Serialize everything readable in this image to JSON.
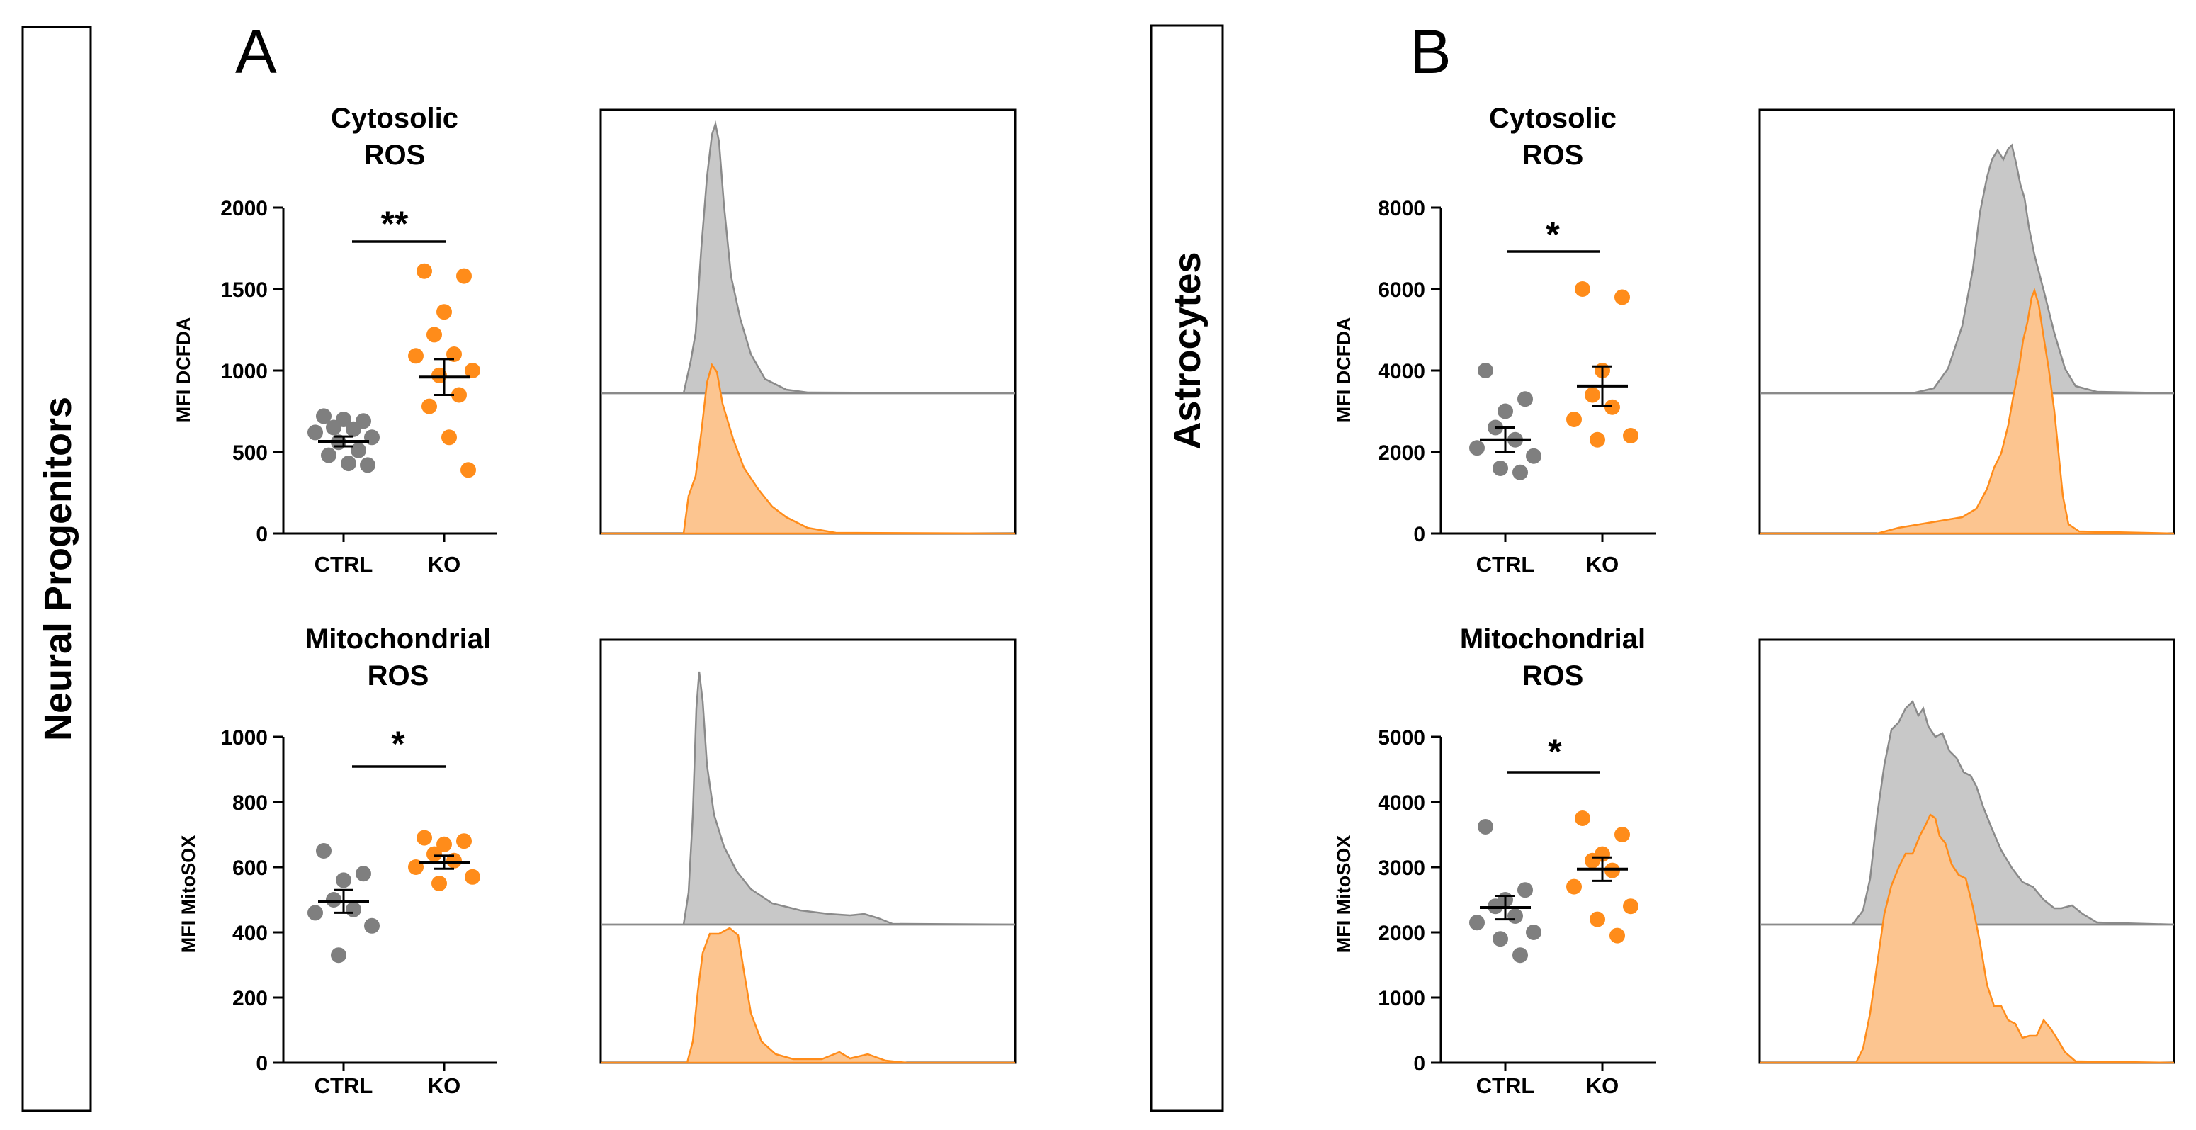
{
  "panels": {
    "left": {
      "letter": "A",
      "side_label": "Neural Progenitors"
    },
    "right": {
      "letter": "B",
      "side_label": "Astrocytes"
    }
  },
  "colors": {
    "ctrl": "#7f7f7f",
    "ko": "#ff8c1a",
    "ctrl_fill": "#c8c8c8",
    "ko_fill": "#fcc590"
  },
  "chart_data": [
    {
      "type": "scatter",
      "id": "npc-cyto",
      "title": [
        "Cytosolic",
        "ROS"
      ],
      "ylabel": "MFI DCFDA",
      "ylim": [
        0,
        2000
      ],
      "yticks": [
        0,
        500,
        1000,
        1500,
        2000
      ],
      "ytick_labels": [
        "0",
        "500",
        "1000",
        "1500",
        "2000"
      ],
      "categories": [
        "CTRL",
        "KO"
      ],
      "series": [
        {
          "name": "CTRL",
          "color": "#7f7f7f",
          "values": [
            720,
            690,
            700,
            650,
            640,
            620,
            590,
            560,
            510,
            480,
            430,
            420
          ],
          "mean": 565,
          "sem": 30
        },
        {
          "name": "KO",
          "color": "#ff8c1a",
          "values": [
            1610,
            1580,
            1360,
            1220,
            1100,
            1090,
            1000,
            970,
            850,
            780,
            590,
            390
          ],
          "mean": 960,
          "sem": 110
        }
      ],
      "significance": "**"
    },
    {
      "type": "scatter",
      "id": "npc-mito",
      "title": [
        "Mitochondrial",
        "ROS"
      ],
      "ylabel": "MFI MitoSOX",
      "ylim": [
        0,
        1000
      ],
      "yticks": [
        0,
        200,
        400,
        600,
        800,
        1000
      ],
      "ytick_labels": [
        "0",
        "200",
        "400",
        "600",
        "800",
        "1000"
      ],
      "categories": [
        "CTRL",
        "KO"
      ],
      "series": [
        {
          "name": "CTRL",
          "color": "#7f7f7f",
          "values": [
            650,
            580,
            560,
            500,
            470,
            460,
            420,
            330
          ],
          "mean": 495,
          "sem": 35
        },
        {
          "name": "KO",
          "color": "#ff8c1a",
          "values": [
            690,
            680,
            670,
            640,
            620,
            600,
            570,
            550
          ],
          "mean": 615,
          "sem": 20
        }
      ],
      "significance": "*"
    },
    {
      "type": "scatter",
      "id": "astro-cyto",
      "title": [
        "Cytosolic",
        "ROS"
      ],
      "ylabel": "MFI DCFDA",
      "ylim": [
        0,
        8000
      ],
      "yticks": [
        0,
        2000,
        4000,
        6000,
        8000
      ],
      "ytick_labels": [
        "0",
        "2000",
        "4000",
        "6000",
        "8000"
      ],
      "categories": [
        "CTRL",
        "KO"
      ],
      "series": [
        {
          "name": "CTRL",
          "color": "#7f7f7f",
          "values": [
            4000,
            3300,
            3000,
            2600,
            2300,
            2100,
            1900,
            1600,
            1500
          ],
          "mean": 2300,
          "sem": 300
        },
        {
          "name": "KO",
          "color": "#ff8c1a",
          "values": [
            6000,
            5800,
            4000,
            3400,
            3100,
            2800,
            2400,
            2300
          ],
          "mean": 3620,
          "sem": 480
        }
      ],
      "significance": "*"
    },
    {
      "type": "scatter",
      "id": "astro-mito",
      "title": [
        "Mitochondrial",
        "ROS"
      ],
      "ylabel": "MFI MitoSOX",
      "ylim": [
        0,
        5000
      ],
      "yticks": [
        0,
        1000,
        2000,
        3000,
        4000,
        5000
      ],
      "ytick_labels": [
        "0",
        "1000",
        "2000",
        "3000",
        "4000",
        "5000"
      ],
      "categories": [
        "CTRL",
        "KO"
      ],
      "series": [
        {
          "name": "CTRL",
          "color": "#7f7f7f",
          "values": [
            3620,
            2650,
            2500,
            2400,
            2250,
            2150,
            2000,
            1900,
            1650
          ],
          "mean": 2380,
          "sem": 180
        },
        {
          "name": "KO",
          "color": "#ff8c1a",
          "values": [
            3750,
            3500,
            3200,
            3100,
            2950,
            2700,
            2400,
            2200,
            1950
          ],
          "mean": 2970,
          "sem": 180
        }
      ],
      "significance": "*"
    }
  ]
}
